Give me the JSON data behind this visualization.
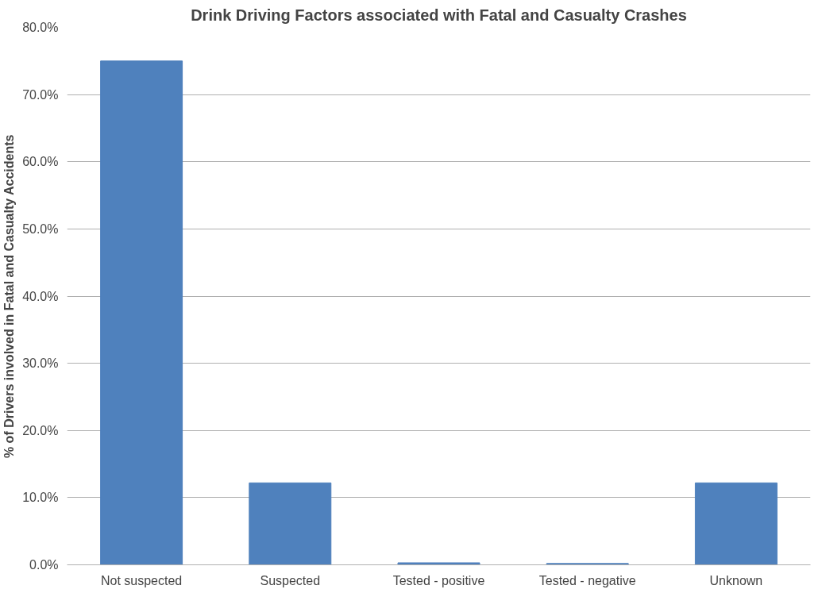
{
  "chart_data": {
    "type": "bar",
    "title": "Drink Driving Factors associated with Fatal and Casualty Crashes",
    "ylabel": "% of Drivers involved in Fatal and Casualty Accidents",
    "categories": [
      "Not suspected",
      "Suspected",
      "Tested - positive",
      "Tested - negative",
      "Unknown"
    ],
    "values": [
      75.0,
      12.2,
      0.3,
      0.2,
      12.2
    ],
    "color": "#4f81bd",
    "ylim": [
      0,
      80
    ],
    "yticks": [
      {
        "value": 0,
        "label": "0.0%"
      },
      {
        "value": 10,
        "label": "10.0%"
      },
      {
        "value": 20,
        "label": "20.0%"
      },
      {
        "value": 30,
        "label": "30.0%"
      },
      {
        "value": 40,
        "label": "40.0%"
      },
      {
        "value": 50,
        "label": "50.0%"
      },
      {
        "value": 60,
        "label": "60.0%"
      },
      {
        "value": 70,
        "label": "70.0%"
      },
      {
        "value": 80,
        "label": "80.0%"
      }
    ],
    "grid": "y"
  }
}
